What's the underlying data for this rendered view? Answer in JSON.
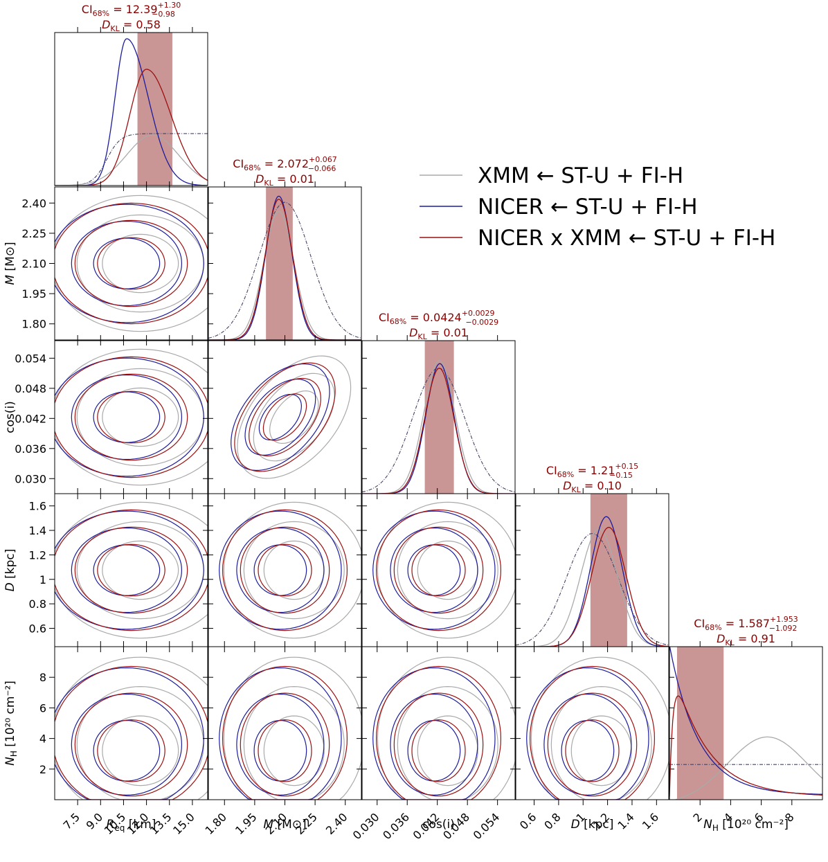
{
  "chart_data": {
    "type": "corner",
    "parameters": [
      {
        "key": "req",
        "label_sym": "R",
        "label_sub": "eq",
        "label_unit": " [km]",
        "range": [
          6.0,
          16.0
        ],
        "ticks": [
          "7.5",
          "9.0",
          "10.5",
          "12.0",
          "13.5",
          "15.0"
        ],
        "tick_values": [
          7.5,
          9.0,
          10.5,
          12.0,
          13.5,
          15.0
        ]
      },
      {
        "key": "mass",
        "label_sym": "M",
        "label_sub": "",
        "label_unit": " [M⊙]",
        "range": [
          1.72,
          2.48
        ],
        "ticks": [
          "1.80",
          "1.95",
          "2.10",
          "2.25",
          "2.40"
        ],
        "tick_values": [
          1.8,
          1.95,
          2.1,
          2.25,
          2.4
        ]
      },
      {
        "key": "cosi",
        "label_sym": "cos(i)",
        "label_sub": "",
        "label_unit": "",
        "range": [
          0.027,
          0.0575
        ],
        "ticks": [
          "0.030",
          "0.036",
          "0.042",
          "0.048",
          "0.054"
        ],
        "tick_values": [
          0.03,
          0.036,
          0.042,
          0.048,
          0.054
        ]
      },
      {
        "key": "dist",
        "label_sym": "D",
        "label_sub": "",
        "label_unit": " [kpc]",
        "range": [
          0.45,
          1.7
        ],
        "ticks": [
          "0.6",
          "0.8",
          "1",
          "1.2",
          "1.4",
          "1.6"
        ],
        "tick_values": [
          0.6,
          0.8,
          1.0,
          1.2,
          1.4,
          1.6
        ]
      },
      {
        "key": "nh",
        "label_sym": "N",
        "label_sub": "H",
        "label_unit": " [10²⁰ cm⁻²]",
        "range": [
          0.0,
          10.0
        ],
        "ticks": [
          "2",
          "4",
          "6",
          "8"
        ],
        "tick_values": [
          2,
          4,
          6,
          8
        ]
      }
    ],
    "diagonal_titles": [
      {
        "ci_label": "CI",
        "ci_sub": "68%",
        "value": "12.39",
        "plus": "+1.30",
        "minus": "−0.98",
        "dkl_sym": "D",
        "dkl_sub": "KL",
        "dkl": "0.58",
        "band": [
          11.41,
          13.69
        ]
      },
      {
        "ci_label": "CI",
        "ci_sub": "68%",
        "value": "2.072",
        "plus": "+0.067",
        "minus": "−0.066",
        "dkl_sym": "D",
        "dkl_sub": "KL",
        "dkl": "0.01",
        "band": [
          2.006,
          2.139
        ]
      },
      {
        "ci_label": "CI",
        "ci_sub": "68%",
        "value": "0.0424",
        "plus": "+0.0029",
        "minus": "−0.0029",
        "dkl_sym": "D",
        "dkl_sub": "KL",
        "dkl": "0.01",
        "band": [
          0.0395,
          0.0453
        ]
      },
      {
        "ci_label": "CI",
        "ci_sub": "68%",
        "value": "1.21",
        "plus": "+0.15",
        "minus": "−0.15",
        "dkl_sym": "D",
        "dkl_sub": "KL",
        "dkl": "0.10",
        "band": [
          1.06,
          1.36
        ]
      },
      {
        "ci_label": "CI",
        "ci_sub": "68%",
        "value": "1.587",
        "plus": "+1.953",
        "minus": "−1.092",
        "dkl_sym": "D",
        "dkl_sub": "KL",
        "dkl": "0.91",
        "band": [
          0.495,
          3.54
        ]
      }
    ],
    "series": [
      {
        "name": "XMM ← ST-U + FI-H",
        "color": "#aaaaaa"
      },
      {
        "name": "NICER ← ST-U + FI-H",
        "color": "#1c1c9c"
      },
      {
        "name": "NICER x XMM ← ST-U + FI-H",
        "color": "#9c1010"
      }
    ],
    "band_color": "#c99595",
    "legend_position": "upper-right"
  }
}
